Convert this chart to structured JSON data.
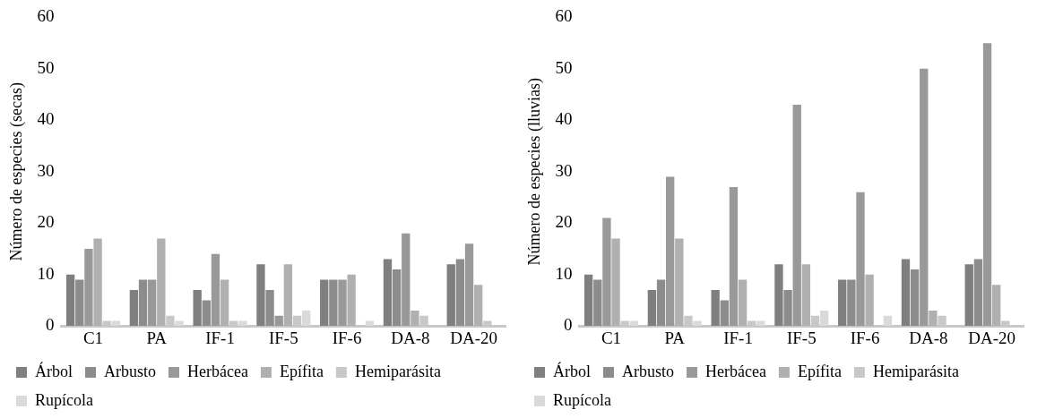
{
  "chart_data": [
    {
      "type": "bar",
      "ylabel": "Número de especies (secas)",
      "categories": [
        "C1",
        "PA",
        "IF-1",
        "IF-5",
        "IF-6",
        "DA-8",
        "DA-20"
      ],
      "ylim": [
        0,
        60
      ],
      "yticks": [
        0,
        10,
        20,
        30,
        40,
        50,
        60
      ],
      "grid": false,
      "legend": "bottom",
      "series": [
        {
          "name": "Árbol",
          "color": "#7f7f7f",
          "values": [
            10,
            7,
            7,
            12,
            9,
            13,
            12
          ]
        },
        {
          "name": "Arbusto",
          "color": "#8c8c8c",
          "values": [
            9,
            9,
            5,
            7,
            9,
            11,
            13
          ]
        },
        {
          "name": "Herbácea",
          "color": "#999999",
          "values": [
            15,
            9,
            14,
            2,
            9,
            18,
            16
          ]
        },
        {
          "name": "Epífita",
          "color": "#b0b0b0",
          "values": [
            17,
            17,
            9,
            12,
            10,
            3,
            8
          ]
        },
        {
          "name": "Hemiparásita",
          "color": "#c8c8c8",
          "values": [
            1,
            2,
            1,
            2,
            0,
            2,
            1
          ]
        },
        {
          "name": "Rupícola",
          "color": "#dadada",
          "values": [
            1,
            1,
            1,
            3,
            1,
            0,
            0
          ]
        }
      ]
    },
    {
      "type": "bar",
      "ylabel": "Número de especies (lluvias)",
      "categories": [
        "C1",
        "PA",
        "IF-1",
        "IF-5",
        "IF-6",
        "DA-8",
        "DA-20"
      ],
      "ylim": [
        0,
        60
      ],
      "yticks": [
        0,
        10,
        20,
        30,
        40,
        50,
        60
      ],
      "grid": false,
      "legend": "bottom",
      "series": [
        {
          "name": "Árbol",
          "color": "#7f7f7f",
          "values": [
            10,
            7,
            7,
            12,
            9,
            13,
            12
          ]
        },
        {
          "name": "Arbusto",
          "color": "#8c8c8c",
          "values": [
            9,
            9,
            5,
            7,
            9,
            11,
            13
          ]
        },
        {
          "name": "Herbácea",
          "color": "#999999",
          "values": [
            21,
            29,
            27,
            43,
            26,
            50,
            55
          ]
        },
        {
          "name": "Epífita",
          "color": "#b0b0b0",
          "values": [
            17,
            17,
            9,
            12,
            10,
            3,
            8
          ]
        },
        {
          "name": "Hemiparásita",
          "color": "#c8c8c8",
          "values": [
            1,
            2,
            1,
            2,
            0,
            2,
            1
          ]
        },
        {
          "name": "Rupícola",
          "color": "#dadada",
          "values": [
            1,
            1,
            1,
            3,
            2,
            0,
            0
          ]
        }
      ]
    }
  ]
}
